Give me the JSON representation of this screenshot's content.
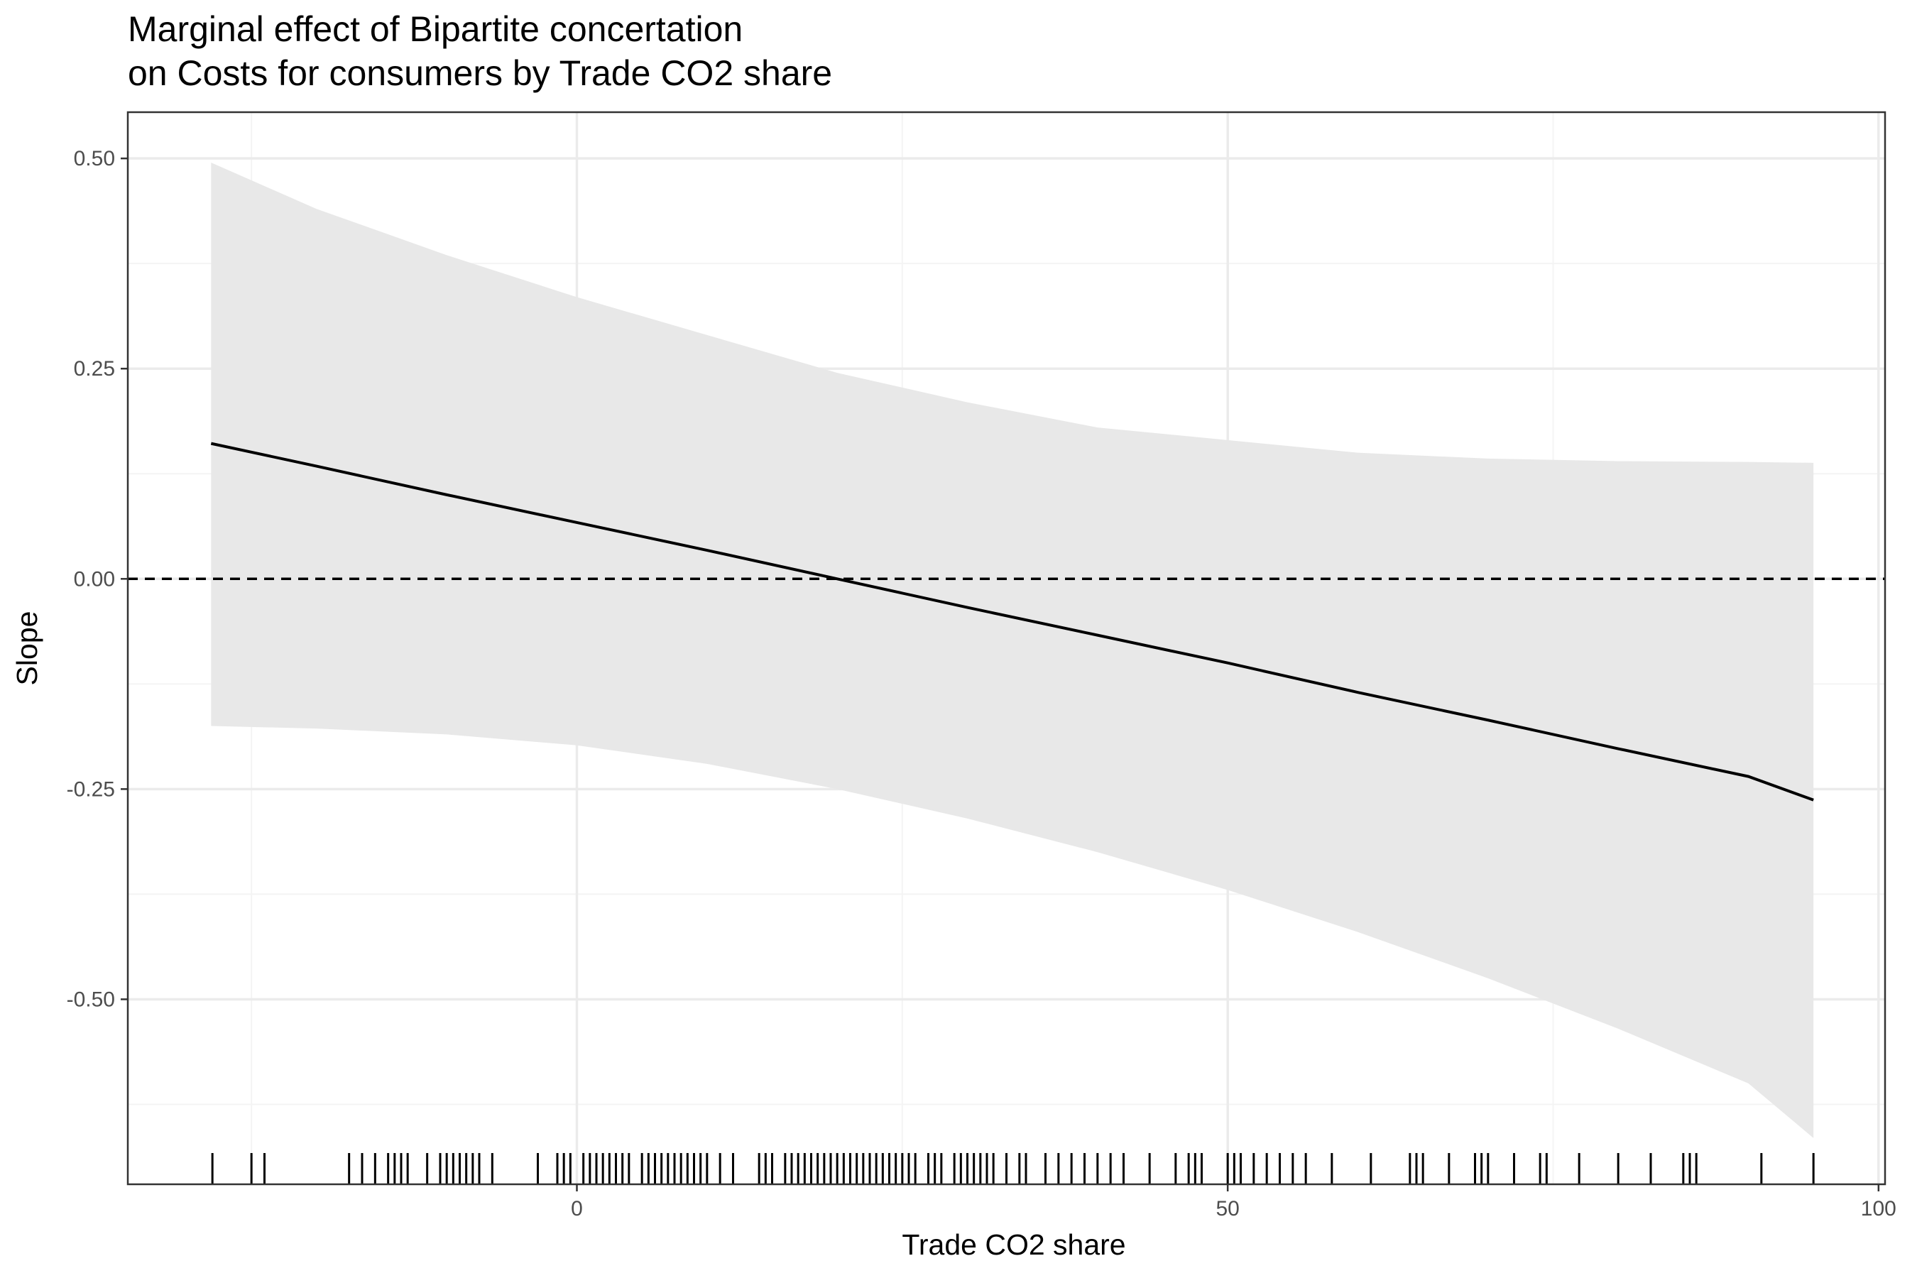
{
  "chart_data": {
    "type": "line",
    "title": "Marginal effect of Bipartite concertation",
    "subtitle": "on Costs for consumers by Trade CO2 share",
    "xlabel": "Trade CO2 share",
    "ylabel": "Slope",
    "xlim": [
      -34.5,
      100.5
    ],
    "ylim": [
      -0.72,
      0.555
    ],
    "x_ticks": [
      {
        "value": 0,
        "label": "0"
      },
      {
        "value": 50,
        "label": "50"
      },
      {
        "value": 100,
        "label": "100"
      }
    ],
    "y_ticks": [
      {
        "value": 0.5,
        "label": "0.50"
      },
      {
        "value": 0.25,
        "label": "0.25"
      },
      {
        "value": 0.0,
        "label": "0.00"
      },
      {
        "value": -0.25,
        "label": "-0.25"
      },
      {
        "value": -0.5,
        "label": "-0.50"
      }
    ],
    "x_minor_grid": [
      -25,
      25,
      75
    ],
    "y_minor_grid": [
      0.375,
      0.125,
      -0.125,
      -0.375,
      -0.625
    ],
    "grid": true,
    "reference_line": {
      "y": 0,
      "style": "dashed"
    },
    "series": [
      {
        "x": [
          -28.1,
          -20,
          -10,
          0,
          10,
          20,
          30,
          40,
          50,
          60,
          70,
          80,
          90,
          95.0
        ],
        "y": [
          0.161,
          0.134,
          0.1,
          0.067,
          0.034,
          0.0,
          -0.034,
          -0.067,
          -0.1,
          -0.135,
          -0.168,
          -0.202,
          -0.235,
          -0.263
        ]
      }
    ],
    "confidence_band": {
      "x": [
        -28.1,
        -20,
        -10,
        0,
        10,
        20,
        30,
        40,
        50,
        60,
        70,
        80,
        90,
        95.0
      ],
      "lower": [
        -0.175,
        -0.178,
        -0.185,
        -0.198,
        -0.22,
        -0.25,
        -0.285,
        -0.325,
        -0.37,
        -0.42,
        -0.475,
        -0.535,
        -0.6,
        -0.665
      ],
      "upper": [
        0.495,
        0.44,
        0.385,
        0.335,
        0.29,
        0.245,
        0.21,
        0.18,
        0.165,
        0.15,
        0.143,
        0.14,
        0.139,
        0.138
      ]
    },
    "rug": [
      -28,
      -25,
      -24,
      -17.5,
      -16.5,
      -15.5,
      -14.5,
      -14,
      -13.5,
      -13,
      -11.5,
      -10.5,
      -10,
      -9.5,
      -9,
      -8.5,
      -8,
      -7.5,
      -6.5,
      -3,
      -1.5,
      -1,
      -0.5,
      0.5,
      1,
      1.5,
      2,
      2.5,
      3,
      3.5,
      4,
      5,
      5.5,
      6,
      6.5,
      7,
      7.5,
      8,
      8.5,
      9,
      9.5,
      10,
      11,
      12,
      14,
      14.5,
      15,
      16,
      16.5,
      17,
      17.5,
      18,
      18.5,
      19,
      19.5,
      20,
      20.5,
      21,
      21.5,
      22,
      22.5,
      23,
      23.5,
      24,
      24.5,
      25,
      25.5,
      26,
      27,
      27.5,
      28,
      29,
      29.5,
      30,
      30.5,
      31,
      31.5,
      32,
      33,
      34,
      34.5,
      36,
      37,
      38,
      39,
      40,
      41,
      42,
      44,
      46,
      47,
      47.5,
      48,
      50,
      50.5,
      51,
      52,
      53,
      54,
      55,
      56,
      58,
      61,
      64,
      64.5,
      65,
      67,
      69,
      69.5,
      70,
      72,
      74,
      74.5,
      77,
      80,
      82.5,
      85,
      85.5,
      86,
      91,
      95
    ],
    "colors": {
      "band": "#e8e8e8",
      "line": "#000000",
      "grid_major": "#ebebeb",
      "grid_minor": "#f4f4f4",
      "panel_border": "#333333",
      "tick_label": "#4d4d4d"
    }
  }
}
